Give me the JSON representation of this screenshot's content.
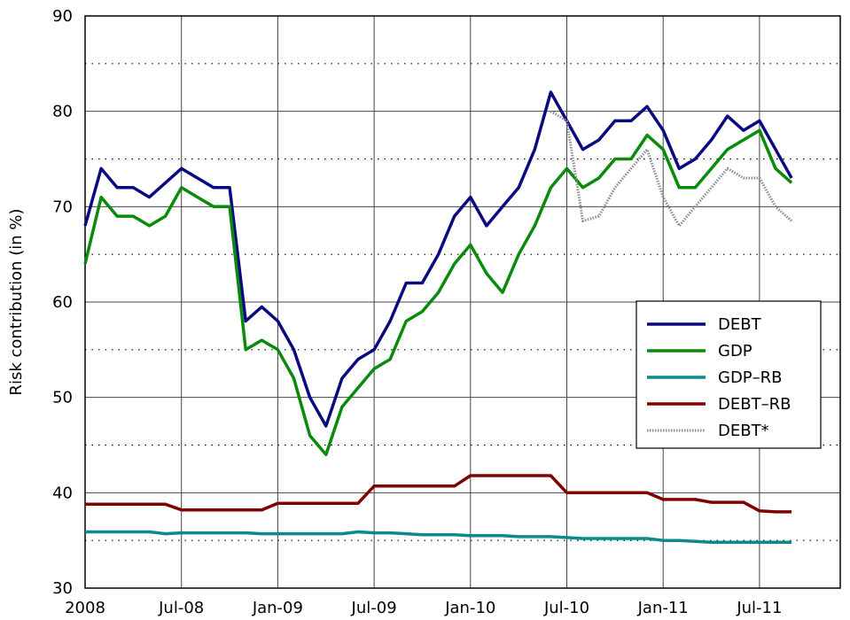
{
  "chart_data": {
    "type": "line",
    "ylabel": "Risk contribution (in %)",
    "x": [
      "2008-01",
      "2008-02",
      "2008-03",
      "2008-04",
      "2008-05",
      "2008-06",
      "2008-07",
      "2008-08",
      "2008-09",
      "2008-10",
      "2008-11",
      "2008-12",
      "2009-01",
      "2009-02",
      "2009-03",
      "2009-04",
      "2009-05",
      "2009-06",
      "2009-07",
      "2009-08",
      "2009-09",
      "2009-10",
      "2009-11",
      "2009-12",
      "2010-01",
      "2010-02",
      "2010-03",
      "2010-04",
      "2010-05",
      "2010-06",
      "2010-07",
      "2010-08",
      "2010-09",
      "2010-10",
      "2010-11",
      "2010-12",
      "2011-01",
      "2011-02",
      "2011-03",
      "2011-04",
      "2011-05",
      "2011-06",
      "2011-07",
      "2011-08",
      "2011-09"
    ],
    "xticks": [
      {
        "value": "2008-01",
        "label": "2008"
      },
      {
        "value": "2008-07",
        "label": "Jul-08"
      },
      {
        "value": "2009-01",
        "label": "Jan-09"
      },
      {
        "value": "2009-07",
        "label": "Jul-09"
      },
      {
        "value": "2010-01",
        "label": "Jan-10"
      },
      {
        "value": "2010-07",
        "label": "Jul-10"
      },
      {
        "value": "2011-01",
        "label": "Jan-11"
      },
      {
        "value": "2011-07",
        "label": "Jul-11"
      }
    ],
    "ylim": [
      30,
      90
    ],
    "yticks": [
      30,
      40,
      50,
      60,
      70,
      80,
      90
    ],
    "minor_yticks": [
      35,
      45,
      55,
      65,
      75,
      85
    ],
    "grid": true,
    "legend": "right",
    "series": [
      {
        "name": "DEBT",
        "color": "#0a0a80",
        "style": "solid",
        "values": [
          68,
          74,
          72,
          72,
          71,
          72.5,
          74,
          73,
          72,
          72,
          58,
          59.5,
          58,
          55,
          50,
          47,
          52,
          54,
          55,
          58,
          62,
          62,
          65,
          69,
          71,
          68,
          70,
          72,
          76,
          82,
          79,
          76,
          77,
          79,
          79,
          80.5,
          78,
          74,
          75,
          77,
          79.5,
          78,
          79,
          76,
          73
        ]
      },
      {
        "name": "GDP",
        "color": "#0a8a0a",
        "style": "solid",
        "values": [
          64,
          71,
          69,
          69,
          68,
          69,
          72,
          71,
          70,
          70,
          55,
          56,
          55,
          52,
          46,
          44,
          49,
          51,
          53,
          54,
          58,
          59,
          61,
          64,
          66,
          63,
          61,
          65,
          68,
          72,
          74,
          72,
          73,
          75,
          75,
          77.5,
          76,
          72,
          72,
          74,
          76,
          77,
          78,
          74,
          72.5
        ]
      },
      {
        "name": "GDP–RB",
        "color": "#0a8a8a",
        "style": "solid",
        "values": [
          35.9,
          35.9,
          35.9,
          35.9,
          35.9,
          35.7,
          35.8,
          35.8,
          35.8,
          35.8,
          35.8,
          35.7,
          35.7,
          35.7,
          35.7,
          35.7,
          35.7,
          35.9,
          35.8,
          35.8,
          35.7,
          35.6,
          35.6,
          35.6,
          35.5,
          35.5,
          35.5,
          35.4,
          35.4,
          35.4,
          35.3,
          35.2,
          35.2,
          35.2,
          35.2,
          35.2,
          35.0,
          35.0,
          34.9,
          34.8,
          34.8,
          34.8,
          34.8,
          34.8,
          34.8
        ]
      },
      {
        "name": "DEBT–RB",
        "color": "#800000",
        "style": "solid",
        "values": [
          38.8,
          38.8,
          38.8,
          38.8,
          38.8,
          38.8,
          38.2,
          38.2,
          38.2,
          38.2,
          38.2,
          38.2,
          38.9,
          38.9,
          38.9,
          38.9,
          38.9,
          38.9,
          40.7,
          40.7,
          40.7,
          40.7,
          40.7,
          40.7,
          41.8,
          41.8,
          41.8,
          41.8,
          41.8,
          41.8,
          40.0,
          40.0,
          40.0,
          40.0,
          40.0,
          40.0,
          39.3,
          39.3,
          39.3,
          39.0,
          39.0,
          39.0,
          38.1,
          38.0,
          38.0
        ]
      },
      {
        "name": "DEBT*",
        "color": "#8c8c8c",
        "style": "dotted",
        "values": [
          null,
          null,
          null,
          null,
          null,
          null,
          null,
          null,
          null,
          null,
          null,
          null,
          null,
          null,
          null,
          null,
          null,
          null,
          null,
          null,
          null,
          null,
          null,
          null,
          null,
          null,
          null,
          null,
          null,
          80,
          79,
          68.5,
          69,
          72,
          74,
          76,
          71,
          68,
          70,
          72,
          74,
          73,
          73,
          70,
          68.5
        ]
      }
    ]
  }
}
